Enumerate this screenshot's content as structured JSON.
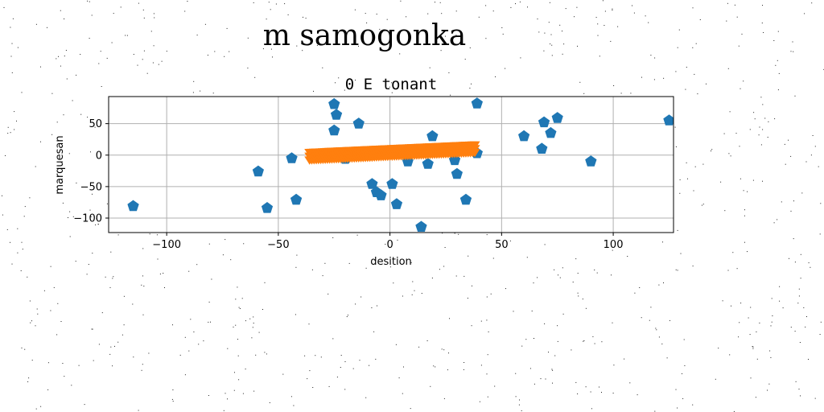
{
  "figure": {
    "suptitle": "m samogonka"
  },
  "chart_data": {
    "type": "scatter",
    "title": "0 E tonant",
    "xlabel": "desition",
    "ylabel": "marquesan",
    "xlim": [
      -126,
      127
    ],
    "ylim": [
      -123,
      93
    ],
    "xticks": [
      -100,
      -50,
      0,
      50,
      100
    ],
    "yticks": [
      -100,
      -50,
      0,
      50
    ],
    "grid": true,
    "colors": {
      "series_1": "#1f77b4",
      "series_2": "#ff7f0e"
    },
    "series": [
      {
        "marker": "pentagon",
        "points": [
          [
            -115,
            -81
          ],
          [
            -59,
            -26
          ],
          [
            -55,
            -84
          ],
          [
            -44,
            -5
          ],
          [
            -42,
            -71
          ],
          [
            -25,
            81
          ],
          [
            -24,
            64
          ],
          [
            -25,
            39
          ],
          [
            -14,
            50
          ],
          [
            -20,
            -6
          ],
          [
            -8,
            -46
          ],
          [
            -6,
            -59
          ],
          [
            -4,
            -64
          ],
          [
            1,
            -46
          ],
          [
            3,
            -78
          ],
          [
            8,
            -10
          ],
          [
            14,
            -114
          ],
          [
            17,
            -14
          ],
          [
            19,
            30
          ],
          [
            29,
            -8
          ],
          [
            30,
            -30
          ],
          [
            34,
            -71
          ],
          [
            39,
            82
          ],
          [
            39,
            3
          ],
          [
            60,
            30
          ],
          [
            68,
            10
          ],
          [
            69,
            52
          ],
          [
            72,
            35
          ],
          [
            75,
            59
          ],
          [
            90,
            -10
          ],
          [
            125,
            55
          ]
        ]
      },
      {
        "marker": "triangle_down",
        "x_start": -36,
        "x_end": 38,
        "n": 75,
        "y_start": -1,
        "y_end": 11,
        "spread": 6
      }
    ]
  }
}
